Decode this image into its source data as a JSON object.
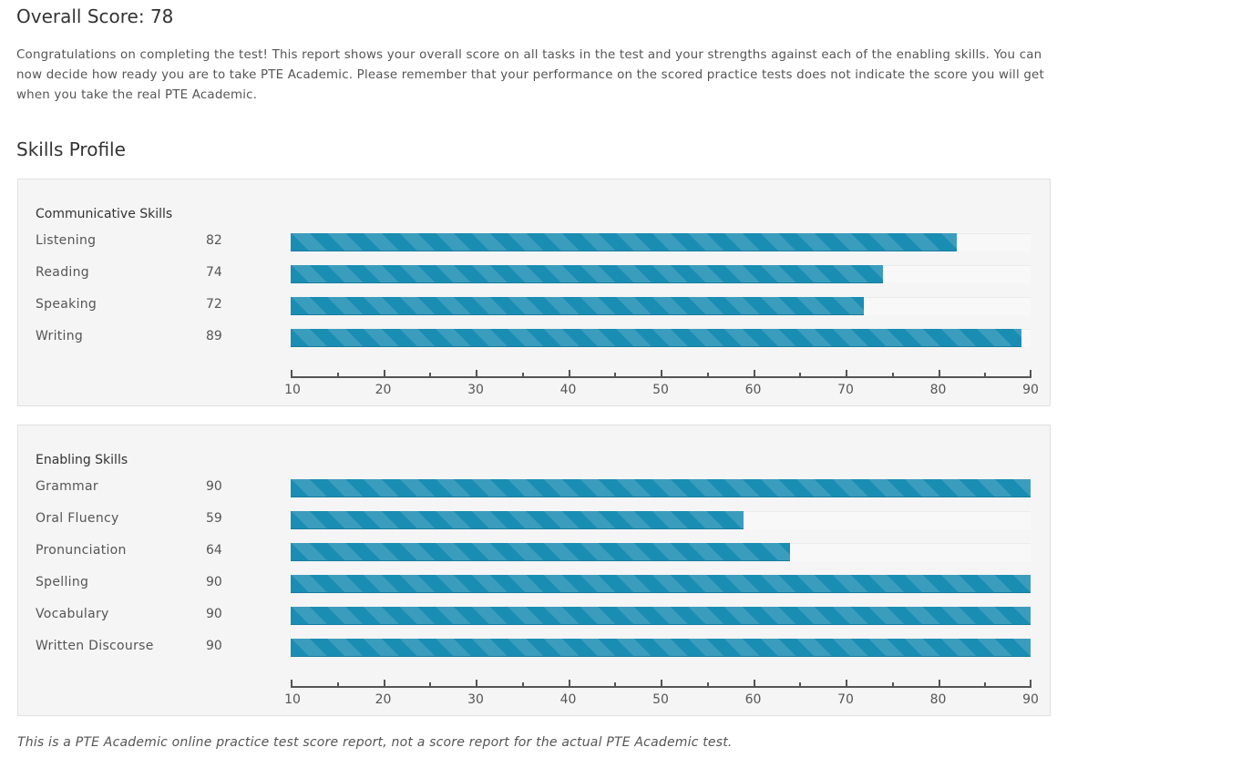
{
  "title": "Overall Score: 78",
  "intro": "Congratulations on completing the test! This report shows your overall score on all tasks in the test and your strengths against each of the enabling skills. You can now decide how ready you are to take PTE Academic. Please remember that your performance on the scored practice tests does not indicate the score you will get when you take the real PTE Academic.",
  "skills_heading": "Skills Profile",
  "footer": "This is a PTE Academic online practice test score report, not a score report for the actual PTE Academic test.",
  "colors": {
    "bar_dark": "#1a8db3",
    "bar_light": "#3b9dbd"
  },
  "chart_data": [
    {
      "type": "bar",
      "orientation": "horizontal",
      "title": "Communicative Skills",
      "categories": [
        "Listening",
        "Reading",
        "Speaking",
        "Writing"
      ],
      "values": [
        82,
        74,
        72,
        89
      ],
      "xlim": [
        10,
        90
      ],
      "ticks": [
        10,
        20,
        30,
        40,
        50,
        60,
        70,
        80,
        90
      ],
      "minor_step": 5
    },
    {
      "type": "bar",
      "orientation": "horizontal",
      "title": "Enabling Skills",
      "categories": [
        "Grammar",
        "Oral Fluency",
        "Pronunciation",
        "Spelling",
        "Vocabulary",
        "Written Discourse"
      ],
      "values": [
        90,
        59,
        64,
        90,
        90,
        90
      ],
      "xlim": [
        10,
        90
      ],
      "ticks": [
        10,
        20,
        30,
        40,
        50,
        60,
        70,
        80,
        90
      ],
      "minor_step": 5
    }
  ]
}
